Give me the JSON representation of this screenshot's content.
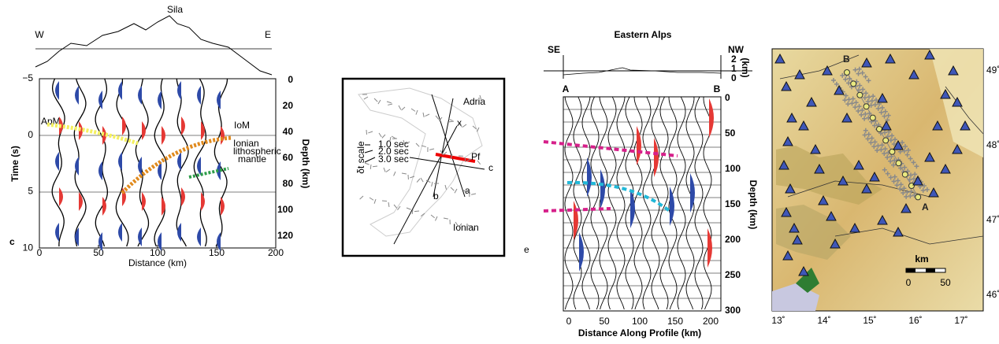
{
  "panel_c": {
    "label": "c",
    "title": "Sila",
    "west": "W",
    "east": "E",
    "y_axis_label": "Time (s)",
    "y2_axis_label": "Depth (km)",
    "x_axis_label": "Distance (km)",
    "x_ticks": [
      "0",
      "50",
      "100",
      "150",
      "200"
    ],
    "y_ticks": [
      "−5",
      "0",
      "5",
      "10"
    ],
    "depth_ticks": [
      "0",
      "20",
      "40",
      "60",
      "80",
      "100",
      "120"
    ],
    "annotations": [
      "ApM",
      "IoM",
      "Ionian",
      "lithospheric",
      "mantle"
    ]
  },
  "panel_d": {
    "labels": [
      "Adria",
      "Ionian",
      "Pf",
      "x",
      "a",
      "b",
      "c"
    ],
    "scale_title": "δt scale",
    "scale": [
      "1.0 sec",
      "2.0 sec",
      "3.0 sec"
    ]
  },
  "panel_e": {
    "label": "e",
    "title": "Eastern Alps",
    "left_end": "SE",
    "right_end": "NW",
    "start": "A",
    "end": "B",
    "elev_label": "(km)",
    "elev_ticks": [
      "2",
      "1",
      "0"
    ],
    "depth_ticks": [
      "0",
      "50",
      "100",
      "150",
      "200",
      "250",
      "300"
    ],
    "y_axis_label": "Depth (km)",
    "x_ticks": [
      "0",
      "50",
      "100",
      "150",
      "200"
    ],
    "x_axis_label": "Distance Along Profile (km)"
  },
  "panel_map": {
    "point_a": "A",
    "point_b": "B",
    "scale_unit": "km",
    "scale_ticks": [
      "0",
      "50"
    ],
    "lat_ticks": [
      "49˚",
      "48˚",
      "47˚",
      "46˚"
    ],
    "lon_ticks": [
      "13˚",
      "14˚",
      "15˚",
      "16˚",
      "17˚"
    ]
  }
}
